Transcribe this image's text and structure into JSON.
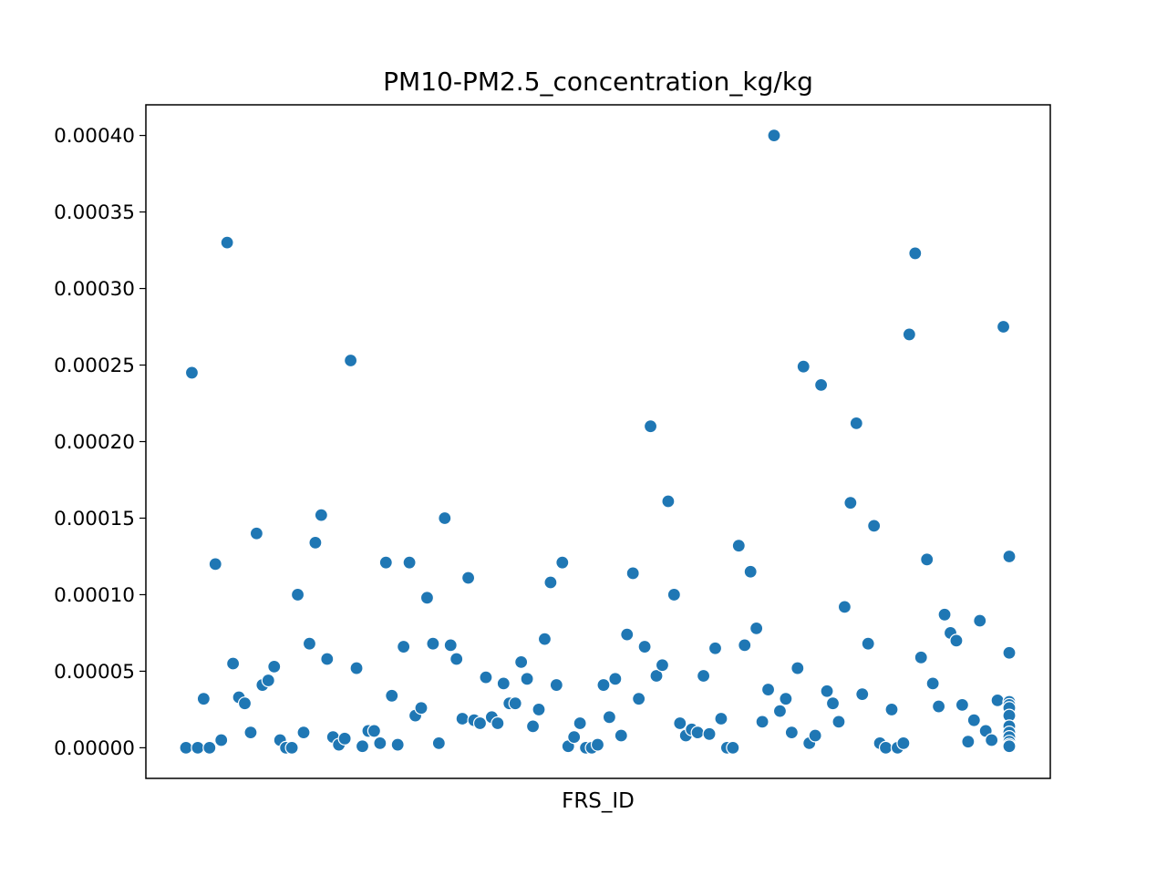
{
  "chart_data": {
    "type": "scatter",
    "title": "PM10-PM2.5_concentration_kg/kg",
    "xlabel": "FRS_ID",
    "ylabel": "",
    "xticks_visible": false,
    "ylim": [
      -2e-05,
      0.00042
    ],
    "yticks": [
      0.0,
      5e-05,
      0.0001,
      0.00015,
      0.0002,
      0.00025,
      0.0003,
      0.00035,
      0.0004
    ],
    "ytick_labels": [
      "0.00000",
      "0.00005",
      "0.00010",
      "0.00015",
      "0.00020",
      "0.00025",
      "0.00030",
      "0.00035",
      "0.00040"
    ],
    "grid": false,
    "legend": false,
    "marker_color": "#1f77b4",
    "series": [
      {
        "x": [
          0,
          1,
          2,
          3,
          4,
          5,
          6,
          7,
          8,
          9,
          10,
          11,
          12,
          13,
          14,
          15,
          16,
          17,
          18,
          19,
          20,
          21,
          22,
          23,
          24,
          25,
          26,
          27,
          28,
          29,
          30,
          31,
          32,
          33,
          34,
          35,
          36,
          37,
          38,
          39,
          40,
          41,
          42,
          43,
          44,
          45,
          46,
          47,
          48,
          49,
          50,
          51,
          52,
          53,
          54,
          55,
          56,
          57,
          58,
          59,
          60,
          61,
          62,
          63,
          64,
          65,
          66,
          67,
          68,
          69,
          70,
          71,
          72,
          73,
          74,
          75,
          76,
          77,
          78,
          79,
          80,
          81,
          82,
          83,
          84,
          85,
          86,
          87,
          88,
          89,
          90,
          91,
          92,
          93,
          94,
          95,
          96,
          97,
          98,
          99,
          100,
          101,
          102,
          103,
          104,
          105,
          106,
          107,
          108,
          109,
          110,
          111,
          112,
          113,
          114,
          115,
          116,
          117,
          118,
          119,
          120,
          121,
          122,
          123,
          124,
          125,
          126,
          127,
          128,
          129,
          130,
          131,
          132,
          133,
          134,
          135,
          136,
          137,
          138,
          139,
          140,
          141,
          142,
          143,
          144,
          145,
          146,
          147,
          148,
          149,
          150,
          151,
          152,
          153,
          154,
          155,
          156,
          157,
          158,
          159,
          160,
          161,
          162,
          163,
          164,
          165,
          166,
          167,
          168,
          169,
          170,
          171,
          172,
          173,
          174,
          175,
          176,
          177,
          178,
          179,
          180,
          181,
          182,
          183,
          184,
          185,
          186,
          187,
          188,
          189,
          190,
          191,
          192,
          193,
          194,
          195,
          196,
          197,
          198,
          199,
          200,
          201,
          202,
          203,
          204,
          205,
          206,
          207,
          208,
          209,
          210,
          211,
          212,
          213,
          214,
          215,
          216,
          217,
          218,
          219,
          220,
          221,
          222,
          223,
          224,
          225,
          226,
          227,
          228,
          229,
          230,
          231,
          232,
          233,
          234,
          235,
          236,
          237,
          238,
          239,
          240,
          241,
          242,
          243,
          244,
          245,
          246,
          247,
          248,
          249,
          250,
          251,
          252,
          253,
          254,
          255,
          256,
          257,
          258,
          259,
          260,
          261,
          262,
          263,
          264,
          265,
          266,
          267,
          268,
          269,
          270,
          271,
          272,
          273,
          274,
          275,
          276,
          277,
          278,
          279,
          280,
          281,
          282,
          283,
          284,
          285,
          286,
          287,
          288,
          289,
          290,
          291,
          292,
          293,
          294,
          295,
          296,
          297,
          298,
          299,
          300,
          301,
          302,
          303,
          304,
          305,
          306,
          307,
          308,
          309,
          310,
          311,
          312,
          313,
          314,
          315,
          316,
          317,
          318,
          319,
          320,
          321,
          322,
          323,
          324,
          325,
          326,
          327,
          328,
          329,
          330,
          331,
          332,
          333,
          334,
          335,
          336,
          337,
          338,
          339,
          340,
          341,
          342,
          343,
          344,
          345,
          346,
          347,
          348,
          349,
          350,
          351,
          352,
          353,
          354,
          355,
          356,
          357,
          358,
          359,
          360,
          361,
          362,
          363,
          364,
          365,
          366,
          367,
          368,
          369,
          370,
          371,
          372,
          373,
          374,
          375,
          376,
          377,
          378,
          379,
          380,
          381,
          382,
          383,
          384,
          385,
          386,
          387,
          388,
          389,
          390,
          391,
          392,
          393,
          394,
          395,
          396,
          397,
          398,
          399,
          400,
          401,
          402,
          403,
          404,
          405,
          406,
          407,
          408,
          409,
          410,
          411,
          412,
          413,
          414,
          415,
          416,
          417,
          418,
          419,
          420,
          421,
          422,
          423,
          424,
          425,
          426,
          427,
          428,
          429,
          430,
          431,
          432,
          433,
          434,
          435,
          436,
          437,
          438,
          439,
          440,
          441,
          442,
          443,
          444,
          445,
          446,
          447,
          448,
          449,
          450,
          451,
          452,
          453,
          454,
          455,
          456,
          457,
          458,
          459,
          460,
          461,
          462,
          463,
          464,
          465,
          466,
          467,
          468,
          469,
          470,
          471,
          472,
          473,
          474,
          475,
          476,
          477,
          478,
          479,
          480,
          481,
          482,
          483,
          484,
          485,
          486,
          487,
          488,
          489,
          490,
          491,
          492,
          493,
          494,
          495,
          496,
          497,
          498,
          499,
          500,
          501,
          502,
          503,
          504,
          505,
          506,
          507,
          508,
          509,
          510,
          511,
          512,
          513,
          514,
          515,
          516,
          517,
          518,
          519,
          520,
          521,
          522,
          523,
          524,
          525,
          526,
          527,
          528,
          529,
          530,
          531,
          532,
          533,
          534,
          535,
          536,
          537,
          538,
          539,
          540,
          541,
          542,
          543,
          544,
          545,
          546,
          547,
          548,
          549,
          550,
          551,
          552,
          553,
          554,
          555,
          556,
          557,
          558,
          559,
          560,
          561,
          562,
          563,
          564,
          565,
          566,
          567,
          568,
          569,
          570,
          571,
          572,
          573,
          574,
          575,
          576,
          577,
          578,
          579,
          580,
          581,
          582,
          583,
          584,
          585,
          586,
          587,
          588,
          589,
          590,
          591,
          592,
          593,
          594,
          595,
          596,
          597,
          598,
          599,
          600,
          601,
          602,
          603,
          604,
          605,
          606,
          607,
          608,
          609,
          610,
          611,
          612,
          613,
          614,
          615,
          616,
          617,
          618,
          619,
          620,
          621,
          622,
          623,
          624,
          625,
          626,
          627,
          628,
          629,
          630,
          631,
          632,
          633,
          634,
          635,
          636,
          637,
          638,
          639,
          640,
          641,
          642,
          643,
          644,
          645,
          646,
          647,
          648,
          649,
          650,
          651,
          652,
          653,
          654,
          655,
          656,
          657,
          658,
          659,
          660,
          661,
          662,
          663,
          664,
          665,
          666,
          667,
          668,
          669,
          670,
          671,
          672,
          673,
          674,
          675,
          676,
          677,
          678,
          679,
          680,
          681,
          682,
          683,
          684,
          685,
          686,
          687,
          688,
          689,
          690,
          691,
          692,
          693,
          694,
          695,
          696,
          697,
          698,
          699,
          700,
          701,
          702,
          703,
          704,
          705,
          706,
          707,
          708,
          709,
          710,
          711,
          712,
          713,
          714,
          715,
          716,
          717,
          718,
          719,
          720,
          721,
          722,
          723,
          724,
          725,
          726,
          727,
          728,
          729,
          730,
          731,
          732,
          733,
          734,
          735,
          736,
          737,
          738,
          739,
          740,
          741,
          742,
          743,
          744,
          745,
          746,
          747,
          748,
          749,
          750,
          751,
          752,
          753,
          754,
          755,
          756,
          757,
          758,
          759,
          760,
          761,
          762,
          763,
          764,
          765,
          766,
          767,
          768,
          769,
          770,
          771,
          772,
          773,
          774,
          775,
          776,
          777,
          778,
          779,
          780,
          781,
          782,
          783,
          784,
          785,
          786,
          787,
          788,
          789,
          790,
          791,
          792,
          793,
          794,
          795,
          796,
          797,
          798,
          799,
          800,
          801,
          802,
          803,
          804,
          805,
          806,
          807,
          808,
          809,
          810,
          811,
          812,
          813,
          814,
          815,
          816,
          817,
          818,
          819,
          820,
          821,
          822,
          823,
          824,
          825,
          826,
          827,
          828,
          829,
          830,
          831,
          832,
          833,
          834,
          835,
          836,
          837,
          838,
          839,
          840,
          841,
          842,
          843,
          844,
          845,
          846,
          847,
          848,
          849,
          850,
          851,
          852,
          853,
          854,
          855,
          856,
          857,
          858,
          859,
          860,
          861,
          862,
          863,
          864,
          865,
          866,
          867,
          868,
          869,
          870,
          871,
          872,
          873,
          874,
          875,
          876,
          877,
          878,
          879,
          880,
          881,
          882,
          883,
          884,
          885,
          886,
          887,
          888,
          889,
          890,
          891,
          892,
          893,
          894,
          895,
          896,
          897,
          898,
          899,
          900,
          901,
          902,
          903,
          904,
          905,
          906,
          907,
          908,
          909,
          910,
          911,
          912,
          913,
          914,
          915,
          916,
          917,
          918,
          919,
          920,
          921,
          922,
          923,
          924,
          925,
          926,
          927,
          928,
          929,
          930,
          931,
          932,
          933,
          934,
          935,
          936,
          937,
          938,
          939,
          940,
          941,
          942,
          943,
          944,
          945,
          946,
          947,
          948,
          949,
          950,
          951,
          952,
          953,
          954,
          955,
          956,
          957,
          958,
          959,
          960,
          961,
          962,
          963,
          964,
          965,
          966,
          967,
          968,
          969,
          970,
          971,
          972,
          973,
          974,
          975,
          976,
          977,
          978,
          979,
          980,
          981,
          982,
          983,
          984,
          985,
          986,
          987,
          988,
          989,
          990,
          991,
          992,
          993,
          994,
          995,
          996,
          997,
          998,
          999
        ],
        "y_subset_note_placeholder": null
      }
    ]
  }
}
